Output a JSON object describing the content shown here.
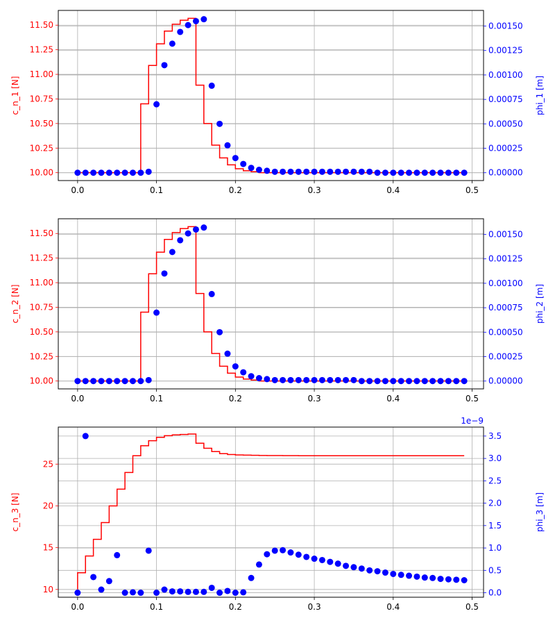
{
  "chart_data": [
    {
      "type": "line",
      "x_ticks": [
        "0.0",
        "0.1",
        "0.2",
        "0.3",
        "0.4",
        "0.5"
      ],
      "x_range": [
        -0.0245,
        0.5145
      ],
      "left": {
        "label": "c_n_1 [N]",
        "color": "#ff0000",
        "range": [
          9.92,
          11.65
        ],
        "ticks": [
          "10.00",
          "10.25",
          "10.50",
          "10.75",
          "11.00",
          "11.25",
          "11.50"
        ],
        "tick_values": [
          10.0,
          10.25,
          10.5,
          10.75,
          11.0,
          11.25,
          11.5
        ],
        "x": [
          0.0,
          0.01,
          0.02,
          0.03,
          0.04,
          0.05,
          0.06,
          0.07,
          0.08,
          0.09,
          0.1,
          0.11,
          0.12,
          0.13,
          0.14,
          0.15,
          0.16,
          0.17,
          0.18,
          0.19,
          0.2,
          0.21,
          0.22,
          0.23,
          0.24,
          0.25,
          0.26,
          0.27,
          0.28,
          0.29,
          0.3,
          0.31,
          0.32,
          0.33,
          0.34,
          0.35,
          0.36,
          0.37,
          0.38,
          0.39,
          0.4,
          0.41,
          0.42,
          0.43,
          0.44,
          0.45,
          0.46,
          0.47,
          0.48,
          0.49
        ],
        "values": [
          10.0,
          10.0,
          10.0,
          10.0,
          10.0,
          10.0,
          10.0,
          10.0,
          10.0,
          10.7,
          11.09,
          11.31,
          11.44,
          11.51,
          11.55,
          11.57,
          10.89,
          10.5,
          10.28,
          10.15,
          10.08,
          10.04,
          10.02,
          10.01,
          10.0,
          10.0,
          10.0,
          10.0,
          10.0,
          10.0,
          10.0,
          10.0,
          10.0,
          10.0,
          10.0,
          10.0,
          10.0,
          10.0,
          10.0,
          10.0,
          10.0,
          10.0,
          10.0,
          10.0,
          10.0,
          10.0,
          10.0,
          10.0,
          10.0,
          10.0
        ]
      },
      "right": {
        "label": "phi_1 [m]",
        "color": "#0000ff",
        "range": [
          -8e-05,
          0.00166
        ],
        "ticks": [
          "0.00000",
          "0.00025",
          "0.00050",
          "0.00075",
          "0.00100",
          "0.00125",
          "0.00150"
        ],
        "tick_values": [
          0.0,
          0.00025,
          0.0005,
          0.00075,
          0.001,
          0.00125,
          0.0015
        ],
        "x": [
          0.0,
          0.01,
          0.02,
          0.03,
          0.04,
          0.05,
          0.06,
          0.07,
          0.08,
          0.09,
          0.1,
          0.11,
          0.12,
          0.13,
          0.14,
          0.15,
          0.16,
          0.17,
          0.18,
          0.19,
          0.2,
          0.21,
          0.22,
          0.23,
          0.24,
          0.25,
          0.26,
          0.27,
          0.28,
          0.29,
          0.3,
          0.31,
          0.32,
          0.33,
          0.34,
          0.35,
          0.36,
          0.37,
          0.38,
          0.39,
          0.4,
          0.41,
          0.42,
          0.43,
          0.44,
          0.45,
          0.46,
          0.47,
          0.48,
          0.49
        ],
        "values": [
          0.0,
          0.0,
          0.0,
          0.0,
          0.0,
          0.0,
          0.0,
          0.0,
          0.0,
          1e-05,
          0.0007,
          0.0011,
          0.00132,
          0.00144,
          0.00151,
          0.00155,
          0.00157,
          0.00089,
          0.0005,
          0.00028,
          0.00015,
          9e-05,
          5e-05,
          3e-05,
          2e-05,
          1e-05,
          1e-05,
          1e-05,
          1e-05,
          1e-05,
          1e-05,
          1e-05,
          1e-05,
          1e-05,
          1e-05,
          1e-05,
          1e-05,
          1e-05,
          0.0,
          0.0,
          0.0,
          0.0,
          0.0,
          0.0,
          0.0,
          0.0,
          0.0,
          0.0,
          0.0,
          0.0
        ]
      },
      "grid": true
    },
    {
      "type": "line",
      "x_ticks": [
        "0.0",
        "0.1",
        "0.2",
        "0.3",
        "0.4",
        "0.5"
      ],
      "x_range": [
        -0.0245,
        0.5145
      ],
      "left": {
        "label": "c_n_2 [N]",
        "color": "#ff0000",
        "range": [
          9.92,
          11.65
        ],
        "ticks": [
          "10.00",
          "10.25",
          "10.50",
          "10.75",
          "11.00",
          "11.25",
          "11.50"
        ],
        "tick_values": [
          10.0,
          10.25,
          10.5,
          10.75,
          11.0,
          11.25,
          11.5
        ],
        "x": [
          0.0,
          0.01,
          0.02,
          0.03,
          0.04,
          0.05,
          0.06,
          0.07,
          0.08,
          0.09,
          0.1,
          0.11,
          0.12,
          0.13,
          0.14,
          0.15,
          0.16,
          0.17,
          0.18,
          0.19,
          0.2,
          0.21,
          0.22,
          0.23,
          0.24,
          0.25,
          0.26,
          0.27,
          0.28,
          0.29,
          0.3,
          0.31,
          0.32,
          0.33,
          0.34,
          0.35,
          0.36,
          0.37,
          0.38,
          0.39,
          0.4,
          0.41,
          0.42,
          0.43,
          0.44,
          0.45,
          0.46,
          0.47,
          0.48,
          0.49
        ],
        "values": [
          10.0,
          10.0,
          10.0,
          10.0,
          10.0,
          10.0,
          10.0,
          10.0,
          10.0,
          10.7,
          11.09,
          11.31,
          11.44,
          11.51,
          11.55,
          11.57,
          10.89,
          10.5,
          10.28,
          10.15,
          10.08,
          10.04,
          10.02,
          10.01,
          10.0,
          10.0,
          10.0,
          10.0,
          10.0,
          10.0,
          10.0,
          10.0,
          10.0,
          10.0,
          10.0,
          10.0,
          10.0,
          10.0,
          10.0,
          10.0,
          10.0,
          10.0,
          10.0,
          10.0,
          10.0,
          10.0,
          10.0,
          10.0,
          10.0,
          10.0
        ]
      },
      "right": {
        "label": "phi_2 [m]",
        "color": "#0000ff",
        "range": [
          -8e-05,
          0.00166
        ],
        "ticks": [
          "0.00000",
          "0.00025",
          "0.00050",
          "0.00075",
          "0.00100",
          "0.00125",
          "0.00150"
        ],
        "tick_values": [
          0.0,
          0.00025,
          0.0005,
          0.00075,
          0.001,
          0.00125,
          0.0015
        ],
        "x": [
          0.0,
          0.01,
          0.02,
          0.03,
          0.04,
          0.05,
          0.06,
          0.07,
          0.08,
          0.09,
          0.1,
          0.11,
          0.12,
          0.13,
          0.14,
          0.15,
          0.16,
          0.17,
          0.18,
          0.19,
          0.2,
          0.21,
          0.22,
          0.23,
          0.24,
          0.25,
          0.26,
          0.27,
          0.28,
          0.29,
          0.3,
          0.31,
          0.32,
          0.33,
          0.34,
          0.35,
          0.36,
          0.37,
          0.38,
          0.39,
          0.4,
          0.41,
          0.42,
          0.43,
          0.44,
          0.45,
          0.46,
          0.47,
          0.48,
          0.49
        ],
        "values": [
          0.0,
          0.0,
          0.0,
          0.0,
          0.0,
          0.0,
          0.0,
          0.0,
          0.0,
          1e-05,
          0.0007,
          0.0011,
          0.00132,
          0.00144,
          0.00151,
          0.00155,
          0.00157,
          0.00089,
          0.0005,
          0.00028,
          0.00015,
          9e-05,
          5e-05,
          3e-05,
          2e-05,
          1e-05,
          1e-05,
          1e-05,
          1e-05,
          1e-05,
          1e-05,
          1e-05,
          1e-05,
          1e-05,
          1e-05,
          1e-05,
          0.0,
          0.0,
          0.0,
          0.0,
          0.0,
          0.0,
          0.0,
          0.0,
          0.0,
          0.0,
          0.0,
          0.0,
          0.0,
          0.0
        ]
      },
      "grid": true
    },
    {
      "type": "line",
      "x_ticks": [
        "0.0",
        "0.1",
        "0.2",
        "0.3",
        "0.4",
        "0.5"
      ],
      "x_range": [
        -0.0245,
        0.5145
      ],
      "left": {
        "label": "c_n_3 [N]",
        "color": "#ff0000",
        "range": [
          9.07,
          29.43
        ],
        "ticks": [
          "10",
          "15",
          "20",
          "25"
        ],
        "tick_values": [
          10,
          15,
          20,
          25
        ],
        "x": [
          0.0,
          0.01,
          0.02,
          0.03,
          0.04,
          0.05,
          0.06,
          0.07,
          0.08,
          0.09,
          0.1,
          0.11,
          0.12,
          0.13,
          0.14,
          0.15,
          0.16,
          0.17,
          0.18,
          0.19,
          0.2,
          0.21,
          0.22,
          0.23,
          0.24,
          0.25,
          0.26,
          0.27,
          0.28,
          0.29,
          0.3,
          0.31,
          0.32,
          0.33,
          0.34,
          0.35,
          0.36,
          0.37,
          0.38,
          0.39,
          0.4,
          0.41,
          0.42,
          0.43,
          0.44,
          0.45,
          0.46,
          0.47,
          0.48,
          0.49
        ],
        "values": [
          10.0,
          12.0,
          14.0,
          16.0,
          18.0,
          20.0,
          22.0,
          24.0,
          26.0,
          27.2,
          27.8,
          28.2,
          28.4,
          28.5,
          28.55,
          28.6,
          27.5,
          26.9,
          26.5,
          26.25,
          26.15,
          26.1,
          26.07,
          26.05,
          26.03,
          26.02,
          26.02,
          26.01,
          26.01,
          26.0,
          26.0,
          26.0,
          26.0,
          26.0,
          26.0,
          26.0,
          26.0,
          26.0,
          26.0,
          26.0,
          26.0,
          26.0,
          26.0,
          26.0,
          26.0,
          26.0,
          26.0,
          26.0,
          26.0,
          26.0
        ]
      },
      "right": {
        "label": "phi_3 [m]",
        "color": "#0000ff",
        "range": [
          -0.1,
          3.7
        ],
        "offset_text": "1e−9",
        "ticks": [
          "0.0",
          "0.5",
          "1.0",
          "1.5",
          "2.0",
          "2.5",
          "3.0",
          "3.5"
        ],
        "tick_values": [
          0.0,
          0.5,
          1.0,
          1.5,
          2.0,
          2.5,
          3.0,
          3.5
        ],
        "x": [
          0.0,
          0.01,
          0.02,
          0.03,
          0.04,
          0.05,
          0.06,
          0.07,
          0.08,
          0.09,
          0.1,
          0.11,
          0.12,
          0.13,
          0.14,
          0.15,
          0.16,
          0.17,
          0.18,
          0.19,
          0.2,
          0.21,
          0.22,
          0.23,
          0.24,
          0.25,
          0.26,
          0.27,
          0.28,
          0.29,
          0.3,
          0.31,
          0.32,
          0.33,
          0.34,
          0.35,
          0.36,
          0.37,
          0.38,
          0.39,
          0.4,
          0.41,
          0.42,
          0.43,
          0.44,
          0.45,
          0.46,
          0.47,
          0.48,
          0.49
        ],
        "values": [
          0.0,
          3.5,
          0.35,
          0.07,
          0.26,
          0.84,
          0.0,
          0.01,
          0.0,
          0.94,
          0.0,
          0.07,
          0.03,
          0.03,
          0.02,
          0.02,
          0.02,
          0.11,
          0.0,
          0.04,
          0.0,
          0.01,
          0.33,
          0.63,
          0.86,
          0.94,
          0.95,
          0.9,
          0.85,
          0.8,
          0.76,
          0.73,
          0.69,
          0.65,
          0.6,
          0.57,
          0.54,
          0.5,
          0.48,
          0.45,
          0.42,
          0.4,
          0.38,
          0.36,
          0.34,
          0.33,
          0.31,
          0.3,
          0.29,
          0.28
        ]
      },
      "grid": true
    }
  ]
}
